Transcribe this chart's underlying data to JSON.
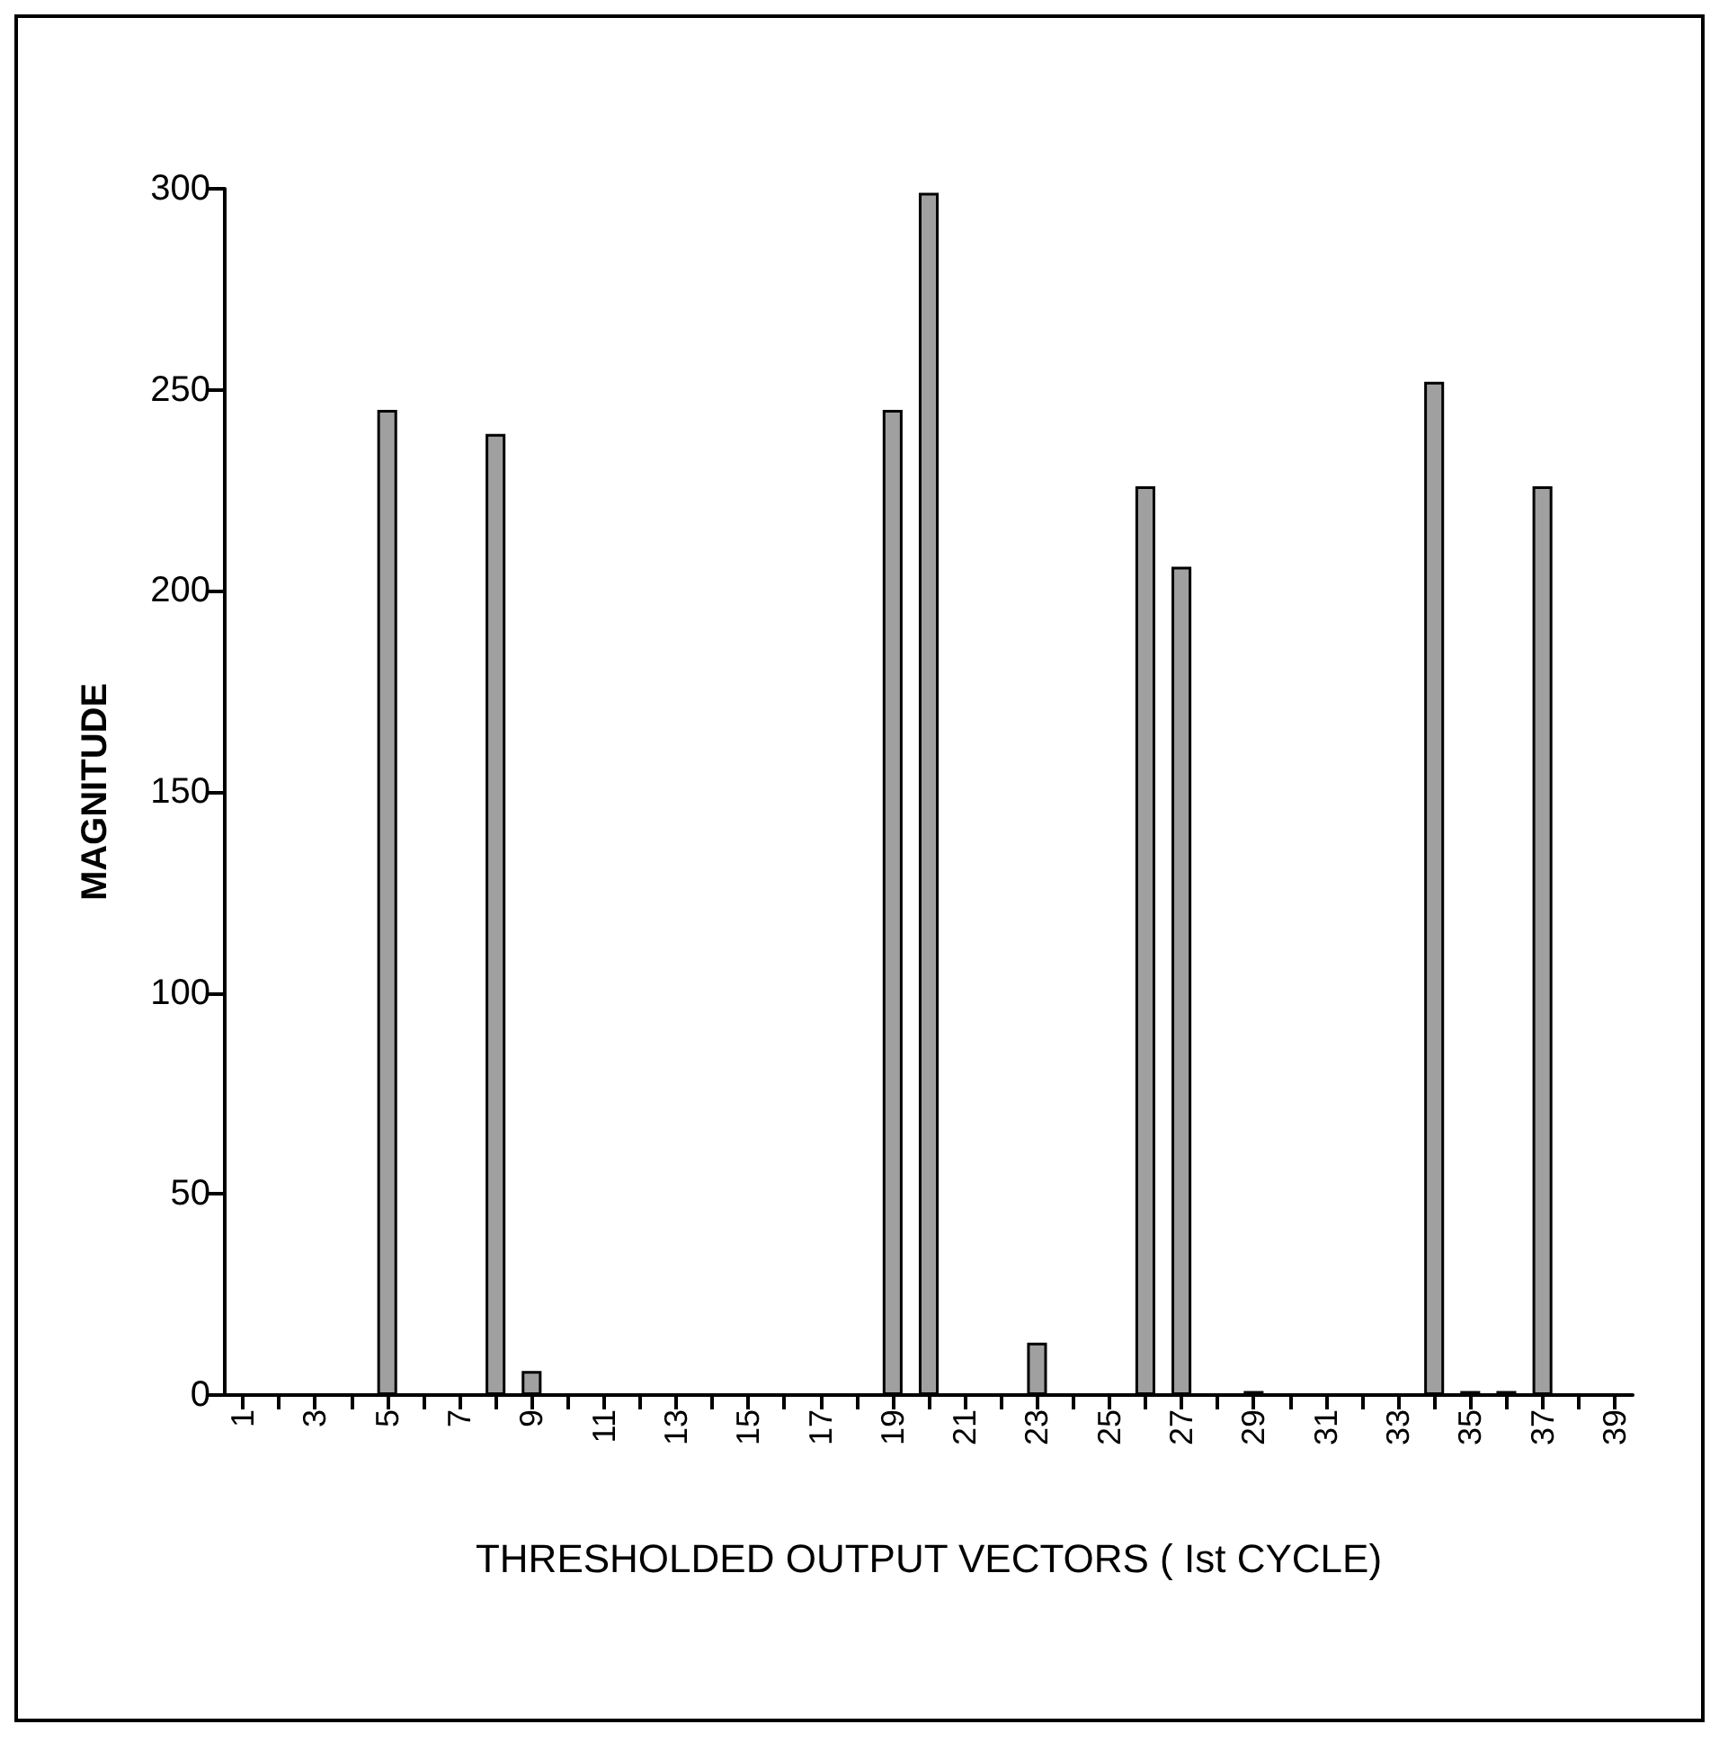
{
  "chart_data": {
    "type": "bar",
    "xlabel": "THRESHOLDED OUTPUT VECTORS ( Ist CYCLE)",
    "ylabel": "MAGNITUDE",
    "categories": [
      "1",
      null,
      "3",
      null,
      "5",
      null,
      "7",
      null,
      "9",
      null,
      "11",
      null,
      "13",
      null,
      "15",
      null,
      "17",
      null,
      "19",
      null,
      "21",
      null,
      "23",
      null,
      "25",
      null,
      "27",
      null,
      "29",
      null,
      "31",
      null,
      "33",
      null,
      "35",
      null,
      "37",
      null,
      "39"
    ],
    "values": [
      0,
      0,
      0,
      0,
      245,
      0,
      0,
      239,
      6,
      0,
      0,
      0,
      0,
      0,
      0,
      0,
      0,
      0,
      245,
      299,
      0,
      0,
      13,
      0,
      0,
      226,
      206,
      0,
      1,
      0,
      0,
      0,
      0,
      252,
      1,
      1,
      226,
      0,
      0
    ],
    "color": "#a0a0a0",
    "ylim": [
      0,
      300
    ],
    "yticks": [
      0,
      50,
      100,
      150,
      200,
      250,
      300
    ],
    "grid": false
  }
}
